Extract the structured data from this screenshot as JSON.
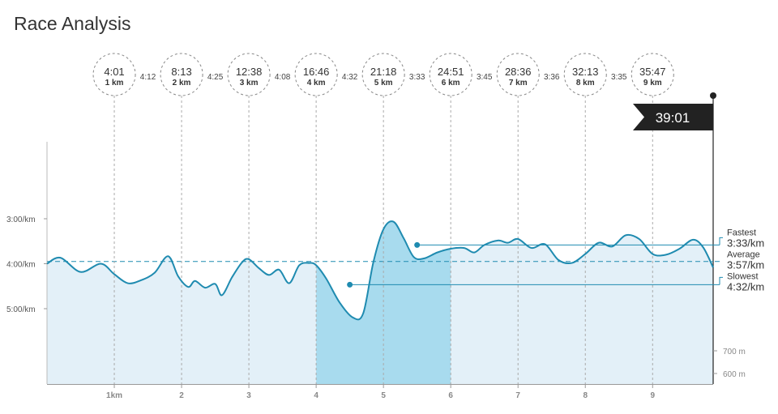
{
  "page": {
    "title": "Race Analysis"
  },
  "chart_data": {
    "type": "area",
    "title": "Race Analysis",
    "x_unit": "km",
    "xlim": [
      0,
      9.9
    ],
    "x_tick_labels": [
      "1km",
      "2",
      "3",
      "4",
      "5",
      "6",
      "7",
      "8",
      "9"
    ],
    "x_ticks": [
      1,
      2,
      3,
      4,
      5,
      6,
      7,
      8,
      9
    ],
    "pace_axis": {
      "tick_labels": [
        "3:00/km",
        "4:00/km",
        "5:00/km"
      ],
      "tick_values_sec": [
        180,
        240,
        300
      ],
      "inverted": true
    },
    "pace_series": {
      "name": "Pace",
      "x": [
        0,
        0.2,
        0.5,
        0.8,
        1.0,
        1.2,
        1.4,
        1.6,
        1.8,
        1.95,
        2.1,
        2.2,
        2.35,
        2.5,
        2.6,
        2.75,
        2.9,
        3.0,
        3.15,
        3.3,
        3.45,
        3.6,
        3.75,
        3.9,
        4.0,
        4.15,
        4.35,
        4.55,
        4.7,
        4.85,
        5.0,
        5.15,
        5.3,
        5.45,
        5.6,
        5.8,
        6.0,
        6.2,
        6.35,
        6.5,
        6.7,
        6.85,
        7.0,
        7.2,
        7.4,
        7.6,
        7.8,
        8.0,
        8.2,
        8.4,
        8.6,
        8.8,
        9.0,
        9.2,
        9.4,
        9.6,
        9.75,
        9.9
      ],
      "pace_sec": [
        240,
        232,
        251,
        240,
        254,
        266,
        262,
        252,
        230,
        257,
        271,
        263,
        272,
        267,
        282,
        258,
        238,
        234,
        246,
        255,
        248,
        266,
        242,
        239,
        242,
        260,
        292,
        312,
        306,
        238,
        194,
        184,
        206,
        231,
        233,
        225,
        220,
        219,
        225,
        215,
        209,
        212,
        207,
        219,
        214,
        235,
        239,
        227,
        212,
        217,
        202,
        207,
        227,
        228,
        220,
        208,
        218,
        245
      ]
    },
    "segments": [
      {
        "start_km": 4,
        "end_km": 6,
        "highlighted": true
      }
    ],
    "stats": {
      "fastest": {
        "label": "Fastest",
        "value": "3:33/km",
        "at_km": 5.5
      },
      "average": {
        "label": "Average",
        "value": "3:57/km"
      },
      "slowest": {
        "label": "Slowest",
        "value": "4:32/km",
        "at_km": 4.5
      }
    },
    "elevation_series": {
      "name": "Elevation",
      "x": [
        0,
        1,
        2,
        3,
        4,
        5,
        6,
        7,
        8,
        9,
        9.9
      ],
      "meters": [
        584,
        598,
        616,
        632,
        652,
        672,
        662,
        646,
        628,
        606,
        590
      ],
      "tick_labels": [
        "700 m",
        "600 m"
      ],
      "tick_values": [
        700,
        600
      ]
    },
    "splits": [
      {
        "time": "4:01",
        "distance": "1 km",
        "km": 1,
        "pace_after": "4:12"
      },
      {
        "time": "8:13",
        "distance": "2 km",
        "km": 2,
        "pace_after": "4:25"
      },
      {
        "time": "12:38",
        "distance": "3 km",
        "km": 3,
        "pace_after": "4:08"
      },
      {
        "time": "16:46",
        "distance": "4 km",
        "km": 4,
        "pace_after": "4:32"
      },
      {
        "time": "21:18",
        "distance": "5 km",
        "km": 5,
        "pace_after": "3:33"
      },
      {
        "time": "24:51",
        "distance": "6 km",
        "km": 6,
        "pace_after": "3:45"
      },
      {
        "time": "28:36",
        "distance": "7 km",
        "km": 7,
        "pace_after": "3:36"
      },
      {
        "time": "32:13",
        "distance": "8 km",
        "km": 8,
        "pace_after": "3:35"
      },
      {
        "time": "35:47",
        "distance": "9 km",
        "km": 9,
        "pace_after": ""
      }
    ],
    "finish": {
      "time": "39:01",
      "km": 9.9
    },
    "colors": {
      "line": "#1f8bb0",
      "area": "#e3f0f8",
      "highlight_area": "#a8dbee",
      "elevation": "#dcdcdc",
      "finish_flag": "#222222"
    }
  }
}
